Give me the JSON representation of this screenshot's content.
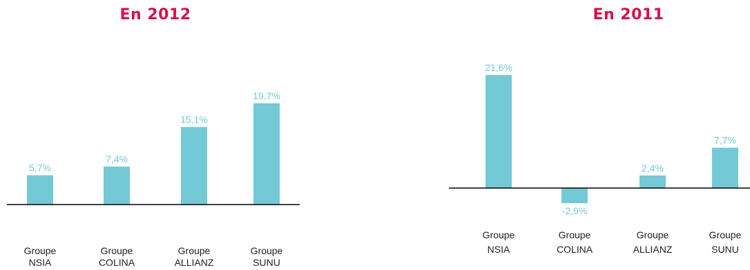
{
  "colors": {
    "title": "#d6114a",
    "bar": "#74c9d6",
    "value_label": "#74c9d6",
    "axis": "#000000",
    "category_label": "#222222"
  },
  "chart_data": [
    {
      "type": "bar",
      "title": "En 2012",
      "categories": [
        [
          "Groupe",
          "NSIA"
        ],
        [
          "Groupe",
          "COLINA"
        ],
        [
          "Groupe",
          "ALLIANZ"
        ],
        [
          "Groupe",
          "SUNU"
        ]
      ],
      "values": [
        5.7,
        7.4,
        15.1,
        19.7
      ],
      "value_labels": [
        "5,7%",
        "7,4%",
        "15,1%",
        "19,7%"
      ],
      "xlabel": "",
      "ylabel": "",
      "ylim": [
        0,
        25
      ],
      "grid": false,
      "legend": "none"
    },
    {
      "type": "bar",
      "title": "En 2011",
      "categories": [
        [
          "Groupe",
          "NSIA"
        ],
        [
          "Groupe",
          "COLINA"
        ],
        [
          "Groupe",
          "ALLIANZ"
        ],
        [
          "Groupe",
          "SUNU"
        ]
      ],
      "values": [
        21.6,
        -2.9,
        2.4,
        7.7
      ],
      "value_labels": [
        "21,6%",
        "-2,9%",
        "2,4%",
        "7,7%"
      ],
      "xlabel": "",
      "ylabel": "",
      "ylim": [
        -5,
        25
      ],
      "grid": false,
      "legend": "none"
    }
  ]
}
